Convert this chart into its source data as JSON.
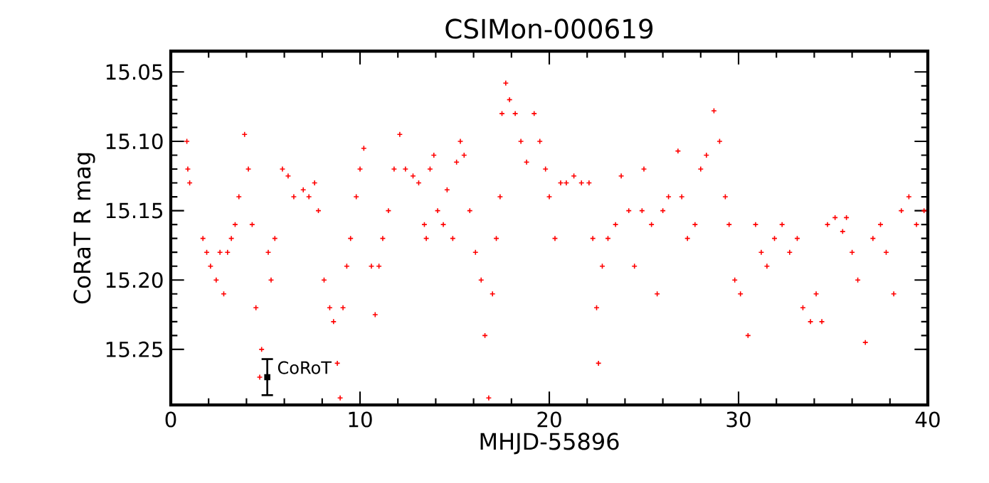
{
  "chart_data": {
    "type": "scatter",
    "title": "CSIMon-000619",
    "xlabel": "MHJD-55896",
    "ylabel": "CoRaT R mag",
    "xlim": [
      0,
      40
    ],
    "ylim": [
      15.29,
      15.035
    ],
    "xticks": [
      0,
      10,
      20,
      30,
      40
    ],
    "yticks": [
      {
        "value": 15.05,
        "label": "15.05"
      },
      {
        "value": 15.1,
        "label": "15.10"
      },
      {
        "value": 15.15,
        "label": "15.15"
      },
      {
        "value": 15.2,
        "label": "15.20"
      },
      {
        "value": 15.25,
        "label": "15.25"
      }
    ],
    "marker": "cross",
    "annotations": [
      {
        "text": "CoRoT",
        "x": 5.1,
        "y": 15.27
      }
    ],
    "series": [
      {
        "color": "#ff0000",
        "x": [
          0.85,
          0.9,
          1.0,
          1.7,
          1.9,
          2.1,
          2.4,
          2.6,
          2.8,
          3.0,
          3.2,
          3.4,
          3.6,
          3.9,
          4.1,
          4.3,
          4.5,
          4.7,
          4.8,
          5.15,
          5.3,
          5.5,
          5.9,
          6.2,
          6.5,
          7.0,
          7.3,
          7.6,
          7.8,
          8.1,
          8.4,
          8.6,
          8.8,
          8.95,
          9.1,
          9.3,
          9.5,
          9.8,
          10.0,
          10.2,
          10.6,
          10.8,
          11.0,
          11.2,
          11.5,
          11.8,
          12.1,
          12.4,
          12.8,
          13.1,
          13.4,
          13.5,
          13.7,
          13.9,
          14.1,
          14.4,
          14.6,
          14.9,
          15.1,
          15.3,
          15.5,
          15.8,
          16.1,
          16.4,
          16.6,
          16.8,
          17.0,
          17.2,
          17.4,
          17.5,
          17.7,
          17.9,
          18.2,
          18.5,
          18.8,
          19.2,
          19.5,
          19.8,
          20.0,
          20.3,
          20.6,
          20.9,
          21.3,
          21.7,
          22.1,
          22.3,
          22.5,
          22.6,
          22.8,
          23.1,
          23.5,
          23.8,
          24.2,
          24.5,
          24.9,
          25.0,
          25.4,
          25.7,
          26.0,
          26.3,
          26.8,
          27.0,
          27.3,
          27.7,
          28.0,
          28.3,
          28.7,
          29.0,
          29.3,
          29.5,
          29.8,
          30.1,
          30.5,
          30.9,
          31.2,
          31.5,
          31.9,
          32.3,
          32.7,
          33.1,
          33.4,
          33.8,
          34.1,
          34.4,
          34.7,
          35.1,
          35.5,
          35.7,
          36.0,
          36.3,
          36.7,
          37.1,
          37.5,
          37.8,
          38.2,
          38.6,
          39.0,
          39.4,
          39.8
        ],
        "values": [
          15.1,
          15.12,
          15.13,
          15.17,
          15.18,
          15.19,
          15.2,
          15.18,
          15.21,
          15.18,
          15.17,
          15.16,
          15.14,
          15.095,
          15.12,
          15.16,
          15.22,
          15.27,
          15.25,
          15.18,
          15.2,
          15.17,
          15.12,
          15.125,
          15.14,
          15.135,
          15.14,
          15.13,
          15.15,
          15.2,
          15.22,
          15.23,
          15.26,
          15.285,
          15.22,
          15.19,
          15.17,
          15.14,
          15.12,
          15.105,
          15.19,
          15.225,
          15.19,
          15.17,
          15.15,
          15.12,
          15.095,
          15.12,
          15.125,
          15.13,
          15.16,
          15.17,
          15.12,
          15.11,
          15.15,
          15.16,
          15.135,
          15.17,
          15.115,
          15.1,
          15.11,
          15.15,
          15.18,
          15.2,
          15.24,
          15.285,
          15.21,
          15.17,
          15.14,
          15.08,
          15.058,
          15.07,
          15.08,
          15.1,
          15.115,
          15.08,
          15.1,
          15.12,
          15.14,
          15.17,
          15.13,
          15.13,
          15.125,
          15.13,
          15.13,
          15.17,
          15.22,
          15.26,
          15.19,
          15.17,
          15.16,
          15.125,
          15.15,
          15.19,
          15.15,
          15.12,
          15.16,
          15.21,
          15.15,
          15.14,
          15.107,
          15.14,
          15.17,
          15.16,
          15.12,
          15.11,
          15.078,
          15.1,
          15.14,
          15.16,
          15.2,
          15.21,
          15.24,
          15.16,
          15.18,
          15.19,
          15.17,
          15.16,
          15.18,
          15.17,
          15.22,
          15.23,
          15.21,
          15.23,
          15.16,
          15.155,
          15.165,
          15.155,
          15.18,
          15.2,
          15.245,
          15.17,
          15.16,
          15.18,
          15.21,
          15.15,
          15.14,
          15.16,
          15.15
        ]
      },
      {
        "color": "#000000",
        "marker": "square",
        "x": [
          5.1
        ],
        "values": [
          15.27
        ],
        "errors": [
          0.013
        ]
      }
    ]
  }
}
